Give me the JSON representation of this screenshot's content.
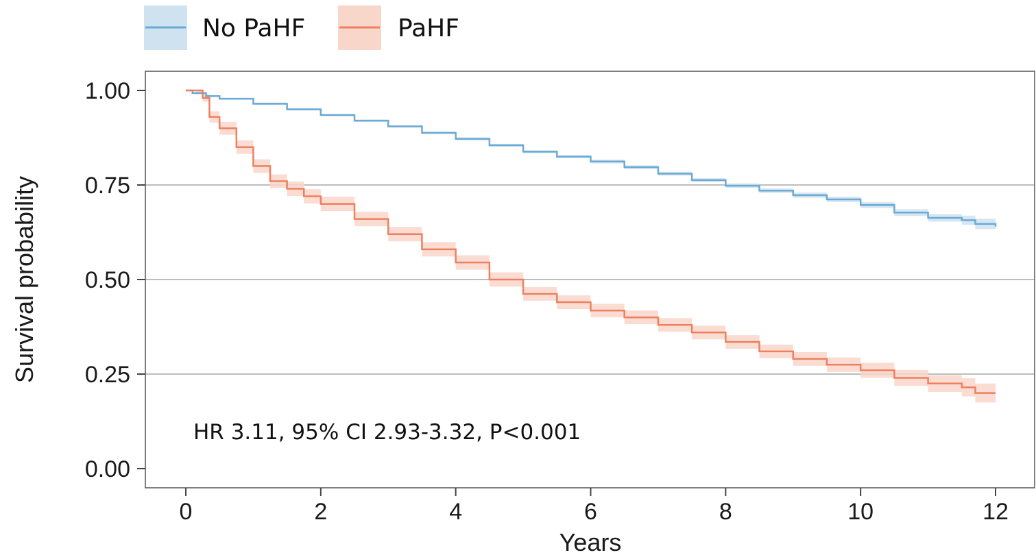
{
  "chart_data": {
    "type": "line",
    "title": "",
    "xlabel": "Years",
    "ylabel": "Survival probability",
    "xlim": [
      0,
      12
    ],
    "ylim": [
      0,
      1
    ],
    "x_ticks": [
      "0",
      "2",
      "4",
      "6",
      "8",
      "10",
      "12"
    ],
    "y_ticks": [
      "0.00",
      "0.25",
      "0.50",
      "0.75",
      "1.00"
    ],
    "grid": "horizontal major lines",
    "legend": {
      "position": "top-left",
      "items": [
        {
          "label": "No PaHF",
          "color": "#6aaad4",
          "band_color": "#cfe2f0"
        },
        {
          "label": "PaHF",
          "color": "#ee8060",
          "band_color": "#f9d6ca"
        }
      ]
    },
    "annotation": "HR 3.11, 95% CI 2.93-3.32, P<0.001",
    "series": [
      {
        "name": "No PaHF",
        "color": "#6aaad4",
        "band_color": "#cfe2f0",
        "x": [
          0,
          0.1,
          0.3,
          0.5,
          1,
          1.5,
          2,
          2.5,
          3,
          3.5,
          4,
          4.5,
          5,
          5.5,
          6,
          6.5,
          7,
          7.5,
          8,
          8.5,
          9,
          9.5,
          10,
          10.5,
          11,
          11.5,
          11.7,
          12
        ],
        "values": [
          1.0,
          0.993,
          0.985,
          0.978,
          0.965,
          0.95,
          0.935,
          0.92,
          0.905,
          0.888,
          0.872,
          0.855,
          0.838,
          0.825,
          0.812,
          0.797,
          0.78,
          0.763,
          0.748,
          0.735,
          0.723,
          0.712,
          0.697,
          0.677,
          0.663,
          0.657,
          0.647,
          0.64
        ],
        "ci_lower": [
          1.0,
          0.991,
          0.983,
          0.976,
          0.962,
          0.947,
          0.932,
          0.917,
          0.902,
          0.885,
          0.868,
          0.851,
          0.834,
          0.821,
          0.807,
          0.792,
          0.775,
          0.758,
          0.742,
          0.729,
          0.716,
          0.705,
          0.689,
          0.668,
          0.653,
          0.645,
          0.633,
          0.624
        ],
        "ci_upper": [
          1.0,
          0.995,
          0.987,
          0.98,
          0.968,
          0.953,
          0.938,
          0.923,
          0.908,
          0.891,
          0.876,
          0.859,
          0.842,
          0.829,
          0.817,
          0.802,
          0.785,
          0.768,
          0.754,
          0.741,
          0.73,
          0.719,
          0.705,
          0.686,
          0.673,
          0.669,
          0.661,
          0.656
        ]
      },
      {
        "name": "PaHF",
        "color": "#ee8060",
        "band_color": "#f9d6ca",
        "x": [
          0,
          0.15,
          0.25,
          0.35,
          0.5,
          0.75,
          1,
          1.25,
          1.5,
          1.75,
          2,
          2.5,
          3,
          3.5,
          4,
          4.5,
          5,
          5.5,
          6,
          6.5,
          7,
          7.5,
          8,
          8.5,
          9,
          9.5,
          10,
          10.5,
          11,
          11.5,
          11.7,
          12
        ],
        "values": [
          1.0,
          1.0,
          0.98,
          0.93,
          0.9,
          0.85,
          0.8,
          0.76,
          0.74,
          0.72,
          0.7,
          0.66,
          0.62,
          0.58,
          0.545,
          0.5,
          0.462,
          0.44,
          0.418,
          0.4,
          0.38,
          0.36,
          0.335,
          0.31,
          0.29,
          0.275,
          0.26,
          0.24,
          0.225,
          0.215,
          0.2,
          0.2
        ],
        "ci_lower": [
          1.0,
          0.99,
          0.97,
          0.915,
          0.883,
          0.832,
          0.782,
          0.742,
          0.721,
          0.701,
          0.681,
          0.641,
          0.601,
          0.561,
          0.526,
          0.481,
          0.444,
          0.422,
          0.4,
          0.382,
          0.362,
          0.342,
          0.317,
          0.292,
          0.272,
          0.256,
          0.24,
          0.219,
          0.203,
          0.191,
          0.175,
          0.172
        ],
        "ci_upper": [
          1.0,
          1.0,
          0.99,
          0.945,
          0.917,
          0.868,
          0.818,
          0.778,
          0.759,
          0.739,
          0.719,
          0.679,
          0.639,
          0.599,
          0.564,
          0.519,
          0.48,
          0.458,
          0.436,
          0.418,
          0.398,
          0.378,
          0.353,
          0.328,
          0.308,
          0.294,
          0.28,
          0.261,
          0.247,
          0.239,
          0.225,
          0.228
        ]
      }
    ]
  }
}
